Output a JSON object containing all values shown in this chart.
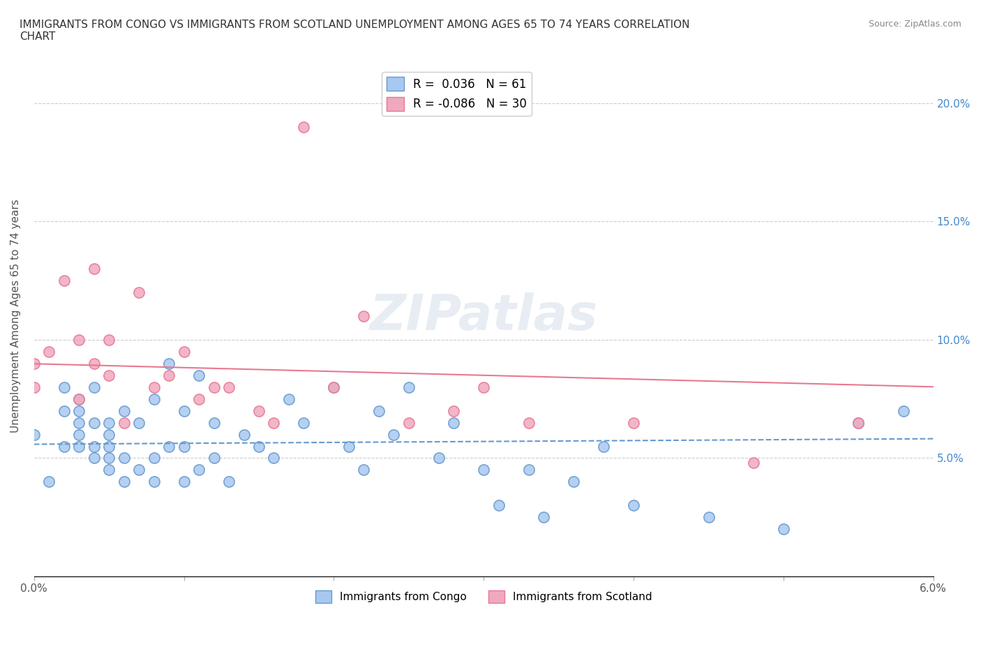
{
  "title": "IMMIGRANTS FROM CONGO VS IMMIGRANTS FROM SCOTLAND UNEMPLOYMENT AMONG AGES 65 TO 74 YEARS CORRELATION\nCHART",
  "source_text": "Source: ZipAtlas.com",
  "xlabel": "",
  "ylabel": "Unemployment Among Ages 65 to 74 years",
  "xlim": [
    0.0,
    0.06
  ],
  "ylim": [
    0.0,
    0.22
  ],
  "xticks": [
    0.0,
    0.01,
    0.02,
    0.03,
    0.04,
    0.05,
    0.06
  ],
  "xticklabels": [
    "0.0%",
    "",
    "",
    "",
    "",
    "",
    "6.0%"
  ],
  "ytick_positions": [
    0.0,
    0.05,
    0.1,
    0.15,
    0.2
  ],
  "ytick_labels_right": [
    "",
    "5.0%",
    "10.0%",
    "15.0%",
    "20.0%"
  ],
  "legend_r_congo": "0.036",
  "legend_n_congo": "61",
  "legend_r_scotland": "-0.086",
  "legend_n_scotland": "30",
  "congo_color": "#a8c8f0",
  "scotland_color": "#f0a8c0",
  "congo_line_color": "#6699cc",
  "scotland_line_color": "#e87890",
  "watermark": "ZIPatlas",
  "congo_x": [
    0.0,
    0.001,
    0.002,
    0.002,
    0.002,
    0.003,
    0.003,
    0.003,
    0.003,
    0.003,
    0.004,
    0.004,
    0.004,
    0.004,
    0.005,
    0.005,
    0.005,
    0.005,
    0.005,
    0.006,
    0.006,
    0.006,
    0.007,
    0.007,
    0.008,
    0.008,
    0.008,
    0.009,
    0.009,
    0.01,
    0.01,
    0.01,
    0.011,
    0.011,
    0.012,
    0.012,
    0.013,
    0.014,
    0.015,
    0.016,
    0.017,
    0.018,
    0.02,
    0.021,
    0.022,
    0.023,
    0.024,
    0.025,
    0.027,
    0.028,
    0.03,
    0.031,
    0.033,
    0.034,
    0.036,
    0.038,
    0.04,
    0.045,
    0.05,
    0.055,
    0.058
  ],
  "congo_y": [
    0.06,
    0.04,
    0.055,
    0.07,
    0.08,
    0.055,
    0.06,
    0.065,
    0.07,
    0.075,
    0.05,
    0.055,
    0.065,
    0.08,
    0.045,
    0.05,
    0.055,
    0.06,
    0.065,
    0.04,
    0.05,
    0.07,
    0.045,
    0.065,
    0.04,
    0.05,
    0.075,
    0.055,
    0.09,
    0.04,
    0.055,
    0.07,
    0.045,
    0.085,
    0.05,
    0.065,
    0.04,
    0.06,
    0.055,
    0.05,
    0.075,
    0.065,
    0.08,
    0.055,
    0.045,
    0.07,
    0.06,
    0.08,
    0.05,
    0.065,
    0.045,
    0.03,
    0.045,
    0.025,
    0.04,
    0.055,
    0.03,
    0.025,
    0.02,
    0.065,
    0.07
  ],
  "scotland_x": [
    0.0,
    0.0,
    0.001,
    0.002,
    0.003,
    0.003,
    0.004,
    0.004,
    0.005,
    0.005,
    0.006,
    0.007,
    0.008,
    0.009,
    0.01,
    0.011,
    0.012,
    0.013,
    0.015,
    0.016,
    0.018,
    0.02,
    0.022,
    0.025,
    0.028,
    0.03,
    0.033,
    0.04,
    0.048,
    0.055
  ],
  "scotland_y": [
    0.08,
    0.09,
    0.095,
    0.125,
    0.1,
    0.075,
    0.09,
    0.13,
    0.085,
    0.1,
    0.065,
    0.12,
    0.08,
    0.085,
    0.095,
    0.075,
    0.08,
    0.08,
    0.07,
    0.065,
    0.19,
    0.08,
    0.11,
    0.065,
    0.07,
    0.08,
    0.065,
    0.065,
    0.048,
    0.065
  ]
}
